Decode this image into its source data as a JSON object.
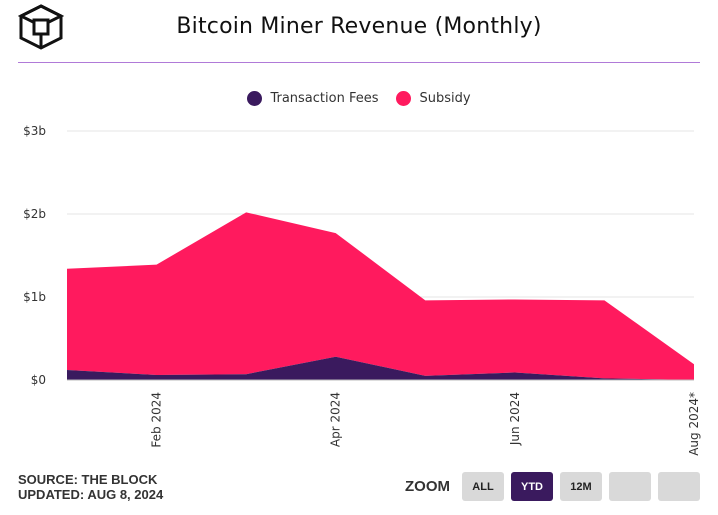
{
  "header": {
    "title": "Bitcoin Miner Revenue (Monthly)"
  },
  "legend": {
    "items": [
      {
        "label": "Transaction Fees",
        "color": "#3a1a5e"
      },
      {
        "label": "Subsidy",
        "color": "#ff1a5e"
      }
    ]
  },
  "chart_data": {
    "type": "area",
    "stacked": true,
    "x": [
      "2024-01",
      "2024-02",
      "2024-03",
      "2024-04",
      "2024-05",
      "2024-06",
      "2024-07",
      "2024-08"
    ],
    "x_tick_labels": [
      "Feb 2024",
      "Apr 2024",
      "Jun 2024",
      "Aug 2024*"
    ],
    "x_tick_positions": [
      "2024-02",
      "2024-04",
      "2024-06",
      "2024-08"
    ],
    "series": [
      {
        "name": "Transaction Fees",
        "values": [
          0.12,
          0.06,
          0.07,
          0.28,
          0.05,
          0.09,
          0.02,
          0.0
        ],
        "color": "#3a1a5e"
      },
      {
        "name": "Subsidy",
        "values": [
          1.22,
          1.33,
          1.95,
          1.49,
          0.91,
          0.88,
          0.94,
          0.19
        ],
        "color": "#ff1a5e"
      }
    ],
    "y_tick_labels": [
      "$0",
      "$1b",
      "$2b",
      "$3b"
    ],
    "y_tick_values": [
      0,
      1,
      2,
      3
    ],
    "ylim": [
      0,
      3
    ],
    "ylabel": "",
    "xlabel": "",
    "grid": true,
    "legend_position": "top-center"
  },
  "footer": {
    "source": "SOURCE: THE BLOCK",
    "updated": "UPDATED: AUG 8, 2024"
  },
  "zoom": {
    "label": "ZOOM",
    "buttons": [
      {
        "label": "ALL",
        "active": false
      },
      {
        "label": "YTD",
        "active": true
      },
      {
        "label": "12M",
        "active": false
      },
      {
        "label": "",
        "active": false
      },
      {
        "label": "",
        "active": false
      }
    ]
  }
}
